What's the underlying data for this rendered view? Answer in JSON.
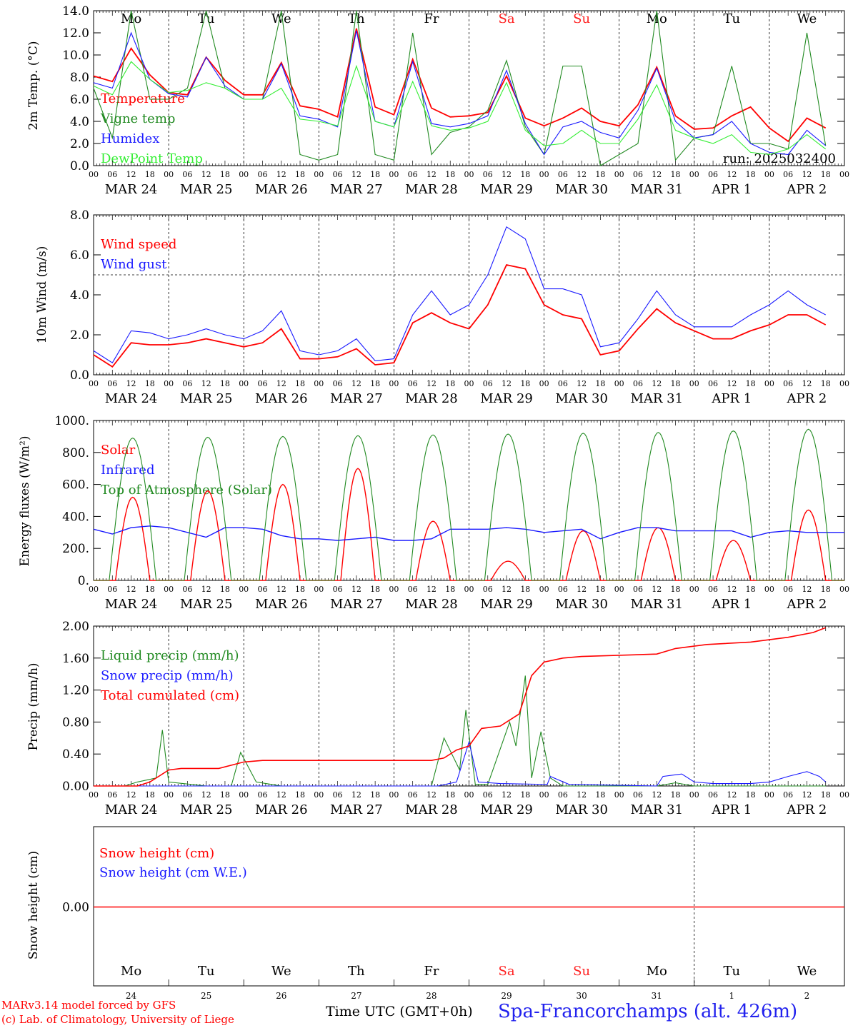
{
  "colors": {
    "red": "#ff0000",
    "green": "#218a21",
    "blue": "#1a1aff",
    "light_green": "#33ee33",
    "axis": "#000000",
    "day_red": "#ff2020"
  },
  "x_axis": {
    "hour_ticks": [
      "00",
      "06",
      "12",
      "18"
    ],
    "dates": [
      "MAR 24",
      "MAR 25",
      "MAR 26",
      "MAR 27",
      "MAR 28",
      "MAR 29",
      "MAR 30",
      "MAR 31",
      "APR  1",
      "APR  2"
    ],
    "weekdays": [
      "Mo",
      "Tu",
      "We",
      "Th",
      "Fr",
      "Sa",
      "Su",
      "Mo",
      "Tu",
      "We"
    ],
    "weekend": [
      false,
      false,
      false,
      false,
      false,
      true,
      true,
      false,
      false,
      false
    ],
    "day_numbers": [
      "24",
      "25",
      "26",
      "27",
      "28",
      "29",
      "30",
      "31",
      "1",
      "2"
    ]
  },
  "footer": {
    "credit_line1": "MARv3.14 model forced by GFS",
    "credit_line2": "(c) Lab. of Climatology, University of Liege",
    "time_label": "Time UTC (GMT+0h)",
    "station": "Spa-Francorchamps (alt. 426m)"
  },
  "chart_data": [
    {
      "type": "line",
      "ylabel": "2m Temp. (°C)",
      "ylim": [
        0,
        14
      ],
      "yticks": [
        "0.0",
        "2.0",
        "4.0",
        "6.0",
        "8.0",
        "10.0",
        "12.0",
        "14.0"
      ],
      "hline": 0,
      "annotation": "run: 2025032400",
      "x_hours": [
        0,
        6,
        12,
        18,
        24,
        30,
        36,
        42,
        48,
        54,
        60,
        66,
        72,
        78,
        84,
        90,
        96,
        102,
        108,
        114,
        120,
        126,
        132,
        138,
        144,
        150,
        156,
        162,
        168,
        174,
        180,
        186,
        192,
        198,
        204,
        210,
        216,
        222,
        228,
        234
      ],
      "series": [
        {
          "name": "Temperature",
          "color": "red",
          "values": [
            8.1,
            7.6,
            10.6,
            8.2,
            6.6,
            6.4,
            9.8,
            7.7,
            6.4,
            6.4,
            9.3,
            5.4,
            5.1,
            4.4,
            12.4,
            5.3,
            4.6,
            9.6,
            5.2,
            4.4,
            4.5,
            4.8,
            8.1,
            4.3,
            3.6,
            4.3,
            5.2,
            4.0,
            3.6,
            5.5,
            8.9,
            4.5,
            3.3,
            3.4,
            4.5,
            5.3,
            3.4,
            2.2,
            4.3,
            3.4
          ]
        },
        {
          "name": "Vigne temp",
          "color": "green",
          "values": [
            7.0,
            2.5,
            14.0,
            6.0,
            6.0,
            7.0,
            14.0,
            7.0,
            6.0,
            6.0,
            14.0,
            1.0,
            0.5,
            1.0,
            14.0,
            1.0,
            0.5,
            12.0,
            1.0,
            3.0,
            3.5,
            5.0,
            9.5,
            3.5,
            1.0,
            9.0,
            9.0,
            0.0,
            1.0,
            2.0,
            14.0,
            0.5,
            2.5,
            2.8,
            9.0,
            2.0,
            2.0,
            1.5,
            12.0,
            1.8
          ]
        },
        {
          "name": "Humidex",
          "color": "blue",
          "values": [
            7.5,
            7.0,
            12.0,
            7.8,
            6.5,
            6.2,
            9.8,
            7.2,
            6.0,
            6.0,
            9.2,
            4.5,
            4.2,
            3.5,
            12.2,
            4.0,
            3.5,
            9.4,
            3.8,
            3.5,
            3.8,
            4.5,
            8.6,
            3.8,
            1.0,
            3.5,
            4.0,
            3.0,
            2.5,
            5.0,
            8.8,
            4.0,
            2.5,
            2.8,
            4.0,
            2.0,
            1.2,
            1.0,
            3.2,
            1.8
          ]
        },
        {
          "name": "DewPoint Temp",
          "color": "light_green",
          "values": [
            7.2,
            6.4,
            9.4,
            7.8,
            6.6,
            6.8,
            7.5,
            7.0,
            6.0,
            6.0,
            7.0,
            4.2,
            4.0,
            3.6,
            9.0,
            4.0,
            3.5,
            7.6,
            3.6,
            3.2,
            3.4,
            4.0,
            7.5,
            3.2,
            1.8,
            2.0,
            3.2,
            2.0,
            2.0,
            4.2,
            7.3,
            3.2,
            2.5,
            2.0,
            2.8,
            1.2,
            1.0,
            1.5,
            2.8,
            1.5
          ]
        }
      ]
    },
    {
      "type": "line",
      "ylabel": "10m Wind (m/s)",
      "ylim": [
        0,
        8
      ],
      "yticks": [
        "0.0",
        "2.0",
        "4.0",
        "6.0",
        "8.0"
      ],
      "hline": 5,
      "x_hours": [
        0,
        6,
        12,
        18,
        24,
        30,
        36,
        42,
        48,
        54,
        60,
        66,
        72,
        78,
        84,
        90,
        96,
        102,
        108,
        114,
        120,
        126,
        132,
        138,
        144,
        150,
        156,
        162,
        168,
        174,
        180,
        186,
        192,
        198,
        204,
        210,
        216,
        222,
        228,
        234
      ],
      "series": [
        {
          "name": "Wind speed",
          "color": "red",
          "values": [
            1.0,
            0.4,
            1.6,
            1.5,
            1.5,
            1.6,
            1.8,
            1.6,
            1.4,
            1.6,
            2.3,
            0.8,
            0.8,
            0.9,
            1.3,
            0.5,
            0.6,
            2.6,
            3.1,
            2.6,
            2.3,
            3.5,
            5.5,
            5.3,
            3.5,
            3.0,
            2.8,
            1.0,
            1.2,
            2.3,
            3.3,
            2.6,
            2.2,
            1.8,
            1.8,
            2.2,
            2.5,
            3.0,
            3.0,
            2.5
          ]
        },
        {
          "name": "Wind gust",
          "color": "blue",
          "values": [
            1.2,
            0.6,
            2.2,
            2.1,
            1.8,
            2.0,
            2.3,
            2.0,
            1.8,
            2.2,
            3.2,
            1.2,
            1.0,
            1.2,
            1.8,
            0.7,
            0.8,
            3.0,
            4.2,
            3.0,
            3.5,
            5.0,
            7.4,
            6.8,
            4.3,
            4.3,
            4.0,
            1.4,
            1.6,
            2.8,
            4.2,
            3.0,
            2.4,
            2.4,
            2.4,
            3.0,
            3.5,
            4.2,
            3.5,
            3.0
          ]
        }
      ]
    },
    {
      "type": "line",
      "ylabel": "Energy fluxes (W/m²)",
      "ylim": [
        0,
        1000
      ],
      "yticks": [
        "0.",
        "200.",
        "400.",
        "600.",
        "800.",
        "1000."
      ],
      "series": [
        {
          "name": "Solar",
          "color": "red",
          "peaks": [
            520,
            560,
            600,
            700,
            370,
            120,
            310,
            330,
            250,
            440
          ]
        },
        {
          "name": "Infrared",
          "color": "blue",
          "x_hours": [
            0,
            6,
            12,
            18,
            24,
            30,
            36,
            42,
            48,
            54,
            60,
            66,
            72,
            78,
            84,
            90,
            96,
            102,
            108,
            114,
            120,
            126,
            132,
            138,
            144,
            150,
            156,
            162,
            168,
            174,
            180,
            186,
            192,
            198,
            204,
            210,
            216,
            222,
            228,
            234
          ],
          "values": [
            320,
            290,
            330,
            340,
            330,
            300,
            270,
            330,
            330,
            320,
            280,
            260,
            260,
            250,
            260,
            270,
            250,
            250,
            260,
            320,
            320,
            320,
            330,
            320,
            300,
            310,
            320,
            260,
            300,
            330,
            330,
            310,
            310,
            310,
            310,
            270,
            300,
            310,
            300,
            300
          ]
        },
        {
          "name": "Top of Atmosphere (Solar)",
          "color": "green",
          "peaks": [
            890,
            895,
            900,
            905,
            910,
            915,
            920,
            925,
            935,
            945
          ]
        }
      ]
    },
    {
      "type": "line",
      "ylabel": "Precip (mm/h)",
      "ylim": [
        0,
        2
      ],
      "yticks": [
        "0.00",
        "0.40",
        "0.80",
        "1.20",
        "1.60",
        "2.00"
      ],
      "series": [
        {
          "name": "Liquid precip (mm/h)",
          "color": "green",
          "points": [
            [
              0,
              0
            ],
            [
              10,
              0
            ],
            [
              14,
              0.05
            ],
            [
              20,
              0.1
            ],
            [
              22,
              0.7
            ],
            [
              24,
              0.05
            ],
            [
              36,
              0
            ],
            [
              44,
              0
            ],
            [
              47,
              0.42
            ],
            [
              52,
              0.05
            ],
            [
              60,
              0
            ],
            [
              108,
              0
            ],
            [
              112,
              0.6
            ],
            [
              117,
              0.2
            ],
            [
              119,
              0.95
            ],
            [
              122,
              0.02
            ],
            [
              126,
              0.02
            ],
            [
              133,
              0.8
            ],
            [
              135,
              0.5
            ],
            [
              138,
              1.38
            ],
            [
              140,
              0.1
            ],
            [
              143,
              0.68
            ],
            [
              146,
              0.1
            ],
            [
              150,
              0
            ],
            [
              180,
              0
            ],
            [
              186,
              0.04
            ],
            [
              192,
              0
            ],
            [
              234,
              0
            ]
          ]
        },
        {
          "name": "Snow precip (mm/h)",
          "color": "blue",
          "points": [
            [
              0,
              0
            ],
            [
              110,
              0
            ],
            [
              116,
              0.05
            ],
            [
              120,
              0.55
            ],
            [
              123,
              0.05
            ],
            [
              130,
              0.03
            ],
            [
              145,
              0.02
            ],
            [
              146,
              0.12
            ],
            [
              152,
              0.02
            ],
            [
              180,
              0
            ],
            [
              182,
              0.12
            ],
            [
              186,
              0.14
            ],
            [
              188,
              0.15
            ],
            [
              192,
              0.05
            ],
            [
              198,
              0.03
            ],
            [
              210,
              0.03
            ],
            [
              216,
              0.05
            ],
            [
              222,
              0.12
            ],
            [
              228,
              0.18
            ],
            [
              232,
              0.12
            ],
            [
              234,
              0.05
            ]
          ]
        },
        {
          "name": "Total cumulated (cm)",
          "color": "red",
          "points": [
            [
              0,
              0
            ],
            [
              14,
              0
            ],
            [
              18,
              0.05
            ],
            [
              24,
              0.2
            ],
            [
              28,
              0.22
            ],
            [
              40,
              0.22
            ],
            [
              48,
              0.3
            ],
            [
              54,
              0.32
            ],
            [
              108,
              0.32
            ],
            [
              112,
              0.35
            ],
            [
              116,
              0.45
            ],
            [
              120,
              0.5
            ],
            [
              124,
              0.72
            ],
            [
              130,
              0.75
            ],
            [
              136,
              0.9
            ],
            [
              140,
              1.38
            ],
            [
              144,
              1.55
            ],
            [
              150,
              1.6
            ],
            [
              156,
              1.62
            ],
            [
              180,
              1.65
            ],
            [
              186,
              1.72
            ],
            [
              196,
              1.77
            ],
            [
              210,
              1.8
            ],
            [
              222,
              1.86
            ],
            [
              230,
              1.92
            ],
            [
              234,
              1.98
            ]
          ]
        }
      ]
    },
    {
      "type": "line",
      "ylabel": "Snow height (cm)",
      "yticks": [
        "0.00"
      ],
      "series": [
        {
          "name": "Snow height (cm)",
          "color": "red",
          "values": [
            0,
            0
          ]
        },
        {
          "name": "Snow height (cm W.E.)",
          "color": "blue",
          "values": [
            0,
            0
          ]
        }
      ]
    }
  ]
}
